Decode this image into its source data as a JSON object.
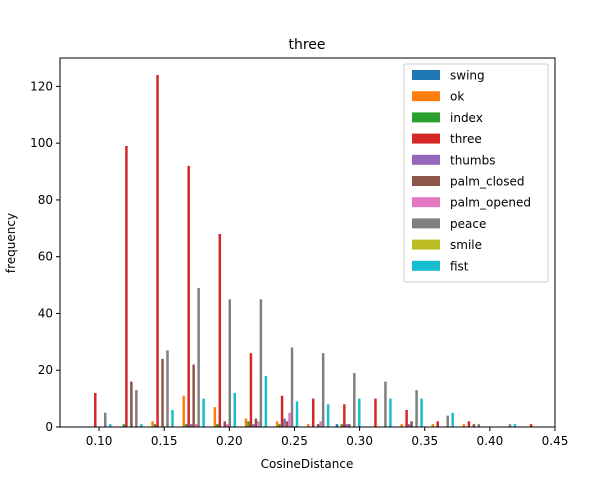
{
  "chart_data": {
    "type": "bar",
    "title": "three",
    "xlabel": "CosineDistance",
    "ylabel": "frequency",
    "xlim": [
      0.07,
      0.45
    ],
    "ylim": [
      0,
      130
    ],
    "xticks": [
      0.1,
      0.15,
      0.2,
      0.25,
      0.3,
      0.35,
      0.4,
      0.45
    ],
    "xtick_labels": [
      "0.10",
      "0.15",
      "0.20",
      "0.25",
      "0.30",
      "0.35",
      "0.40",
      "0.45"
    ],
    "yticks": [
      0,
      20,
      40,
      60,
      80,
      100,
      120
    ],
    "ytick_labels": [
      "0",
      "20",
      "40",
      "60",
      "80",
      "100",
      "120"
    ],
    "legend_position": "top-right",
    "bin_edges": [
      0.088,
      0.1119,
      0.1358,
      0.1597,
      0.1836,
      0.2075,
      0.2314,
      0.2553,
      0.2792,
      0.3031,
      0.327,
      0.3509,
      0.3748,
      0.3987,
      0.4226,
      0.4465
    ],
    "series": [
      {
        "name": "swing",
        "color": "#1f77b4",
        "values": [
          0,
          0,
          0,
          0,
          0,
          0,
          0,
          0,
          1,
          0,
          0,
          0,
          0,
          0,
          0
        ]
      },
      {
        "name": "ok",
        "color": "#ff7f0e",
        "values": [
          0,
          0,
          2,
          11,
          7,
          3,
          2,
          1,
          0,
          0,
          1,
          1,
          1,
          0,
          0
        ]
      },
      {
        "name": "index",
        "color": "#2ca02c",
        "values": [
          0,
          1,
          1,
          1,
          1,
          2,
          1,
          0,
          1,
          0,
          0,
          0,
          0,
          0,
          0
        ]
      },
      {
        "name": "three",
        "color": "#d62728",
        "values": [
          12,
          99,
          124,
          92,
          68,
          26,
          11,
          10,
          8,
          10,
          6,
          2,
          2,
          0,
          1
        ]
      },
      {
        "name": "thumbs",
        "color": "#9467bd",
        "values": [
          0,
          0,
          0,
          1,
          0,
          1,
          3,
          0,
          1,
          0,
          1,
          0,
          0,
          0,
          0
        ]
      },
      {
        "name": "palm_closed",
        "color": "#8c564b",
        "values": [
          0,
          16,
          24,
          22,
          2,
          3,
          2,
          1,
          1,
          0,
          2,
          0,
          1,
          0,
          0
        ]
      },
      {
        "name": "palm_opened",
        "color": "#e377c2",
        "values": [
          0,
          0,
          0,
          1,
          1,
          2,
          5,
          2,
          0,
          0,
          0,
          0,
          0,
          0,
          0
        ]
      },
      {
        "name": "peace",
        "color": "#7f7f7f",
        "values": [
          5,
          13,
          27,
          49,
          45,
          45,
          28,
          26,
          19,
          16,
          13,
          4,
          1,
          1,
          0
        ]
      },
      {
        "name": "smile",
        "color": "#bcbd22",
        "values": [
          0,
          0,
          0,
          0,
          0,
          0,
          0,
          0,
          0,
          0,
          0,
          0,
          0,
          0,
          0
        ]
      },
      {
        "name": "fist",
        "color": "#17becf",
        "values": [
          1,
          1,
          6,
          10,
          12,
          18,
          9,
          8,
          10,
          10,
          10,
          5,
          0,
          1,
          0
        ]
      }
    ]
  }
}
